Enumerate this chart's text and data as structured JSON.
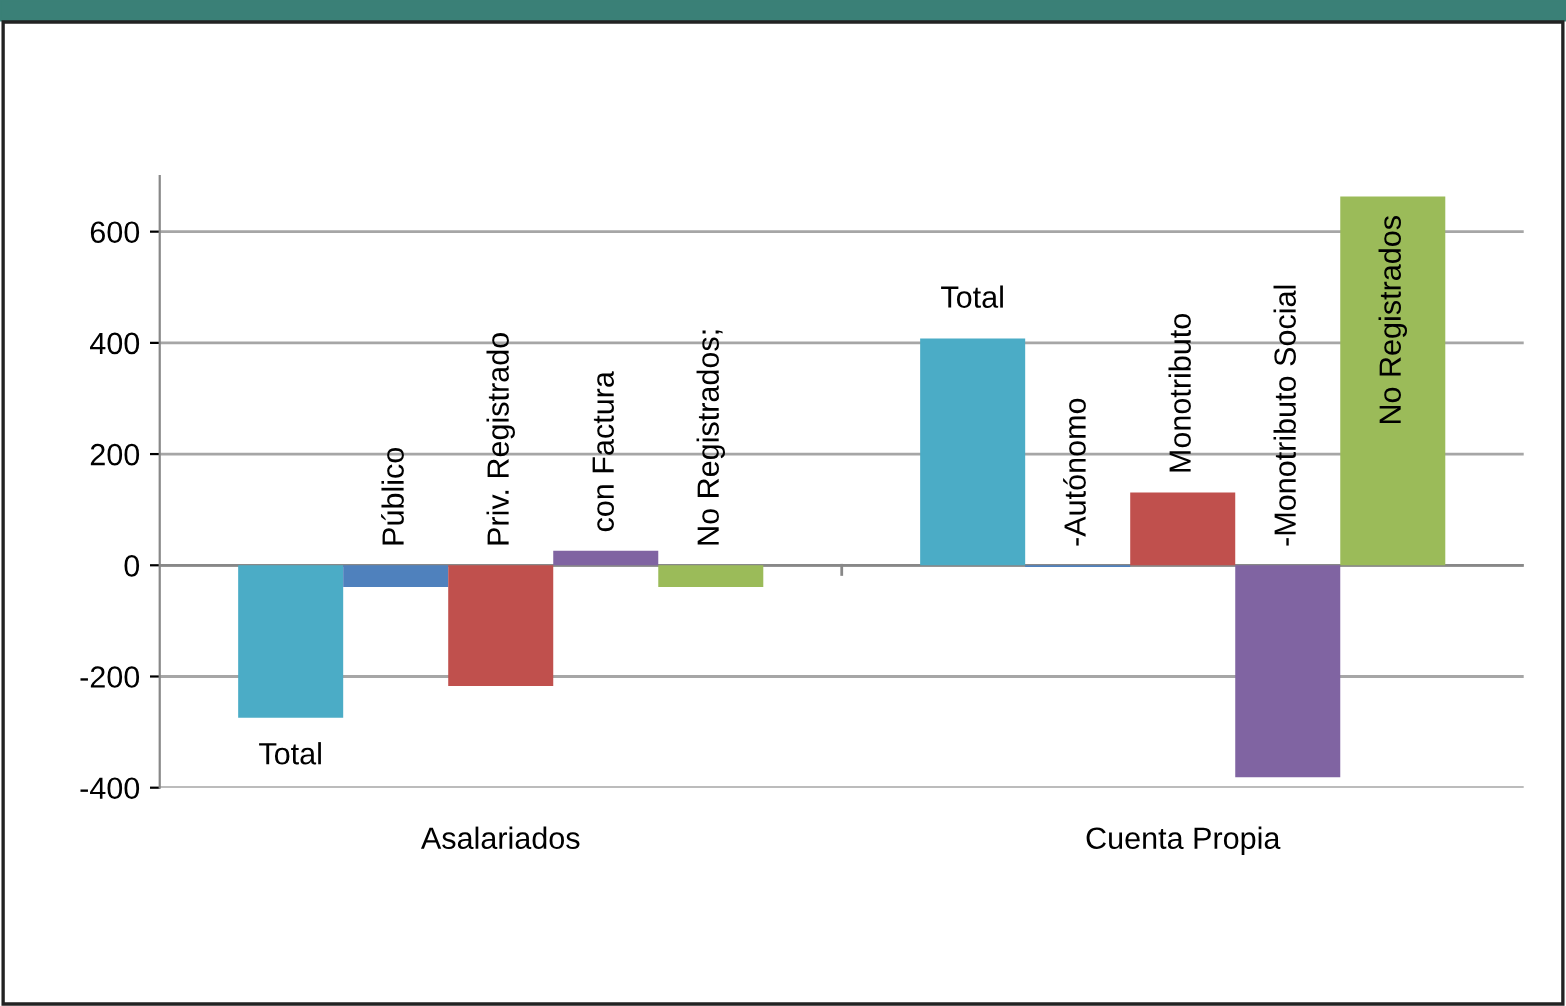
{
  "chart_data": {
    "type": "bar",
    "categories": [
      "Asalariados",
      "Cuenta Propia"
    ],
    "series": [
      {
        "color": "#4bacc6",
        "values": [
          -274,
          408
        ]
      },
      {
        "color": "#4f81bd",
        "values": [
          -39,
          -3
        ]
      },
      {
        "color": "#c0504d",
        "values": [
          -217,
          131
        ]
      },
      {
        "color": "#8064a2",
        "values": [
          26,
          -381
        ]
      },
      {
        "color": "#9bbb59",
        "values": [
          -39,
          663
        ]
      }
    ],
    "annotations": [
      "Total",
      "Público",
      "Priv. Registrado",
      "con Factura",
      "No Registrados;",
      "Total",
      "-Autónomo",
      "Monotributo",
      "-Monotributo Social",
      "No Registrados"
    ],
    "ylim": [
      -400,
      700
    ],
    "yticks": [
      -400,
      -200,
      0,
      200,
      400,
      600
    ],
    "grid": "y"
  }
}
